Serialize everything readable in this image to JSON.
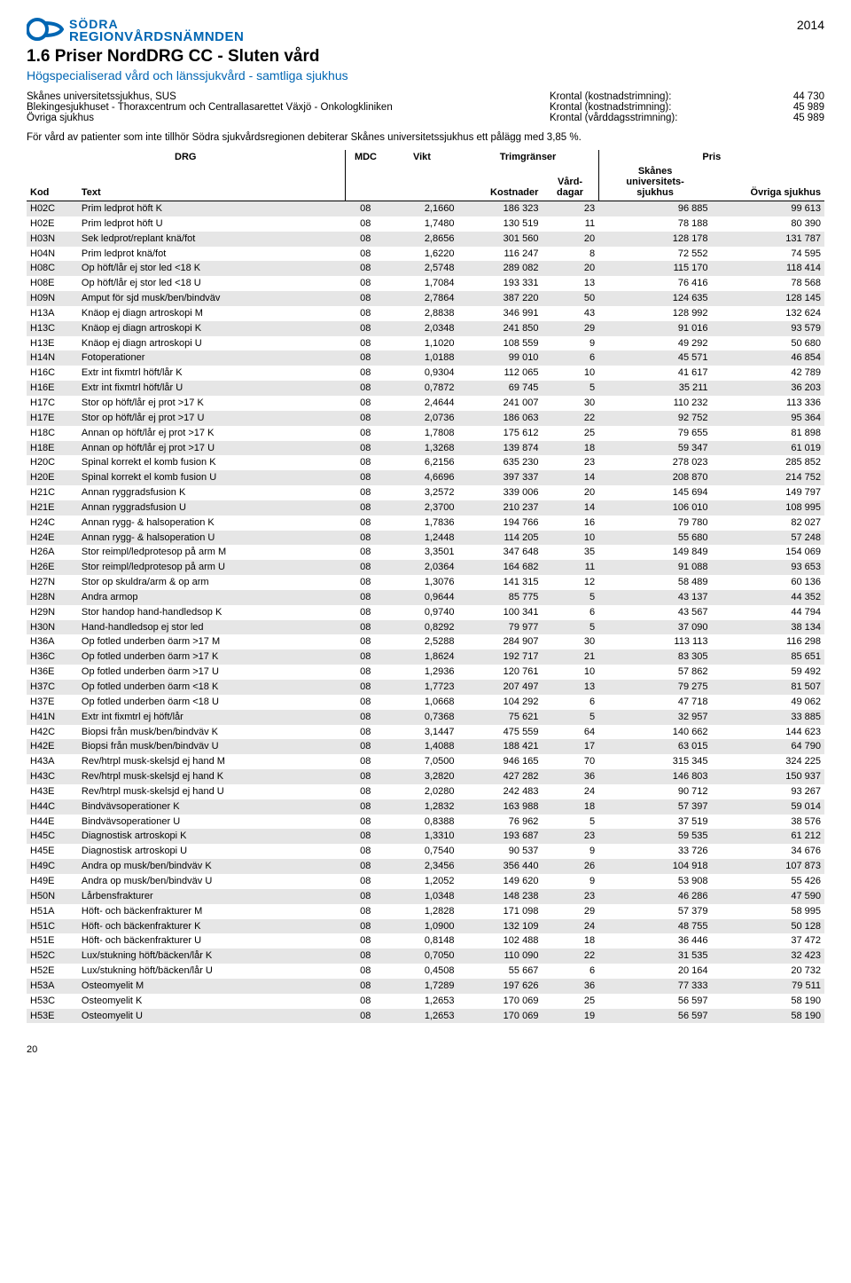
{
  "brand_top": "SÖDRA",
  "brand_bottom": "REGIONVÅRDSNÄMNDEN",
  "year": "2014",
  "title": "1.6  Priser NordDRG CC - Sluten vård",
  "subtitle": "Högspecialiserad vård och länssjukvård - samtliga sjukhus",
  "info_left": [
    "Skånes universitetssjukhus, SUS",
    "Blekingesjukhuset - Thoraxcentrum och Centrallasarettet Växjö  - Onkologkliniken",
    "Övriga sjukhus"
  ],
  "info_right": [
    {
      "label": "Krontal (kostnadstrimning):",
      "val": "44 730"
    },
    {
      "label": "Krontal (kostnadstrimning):",
      "val": "45 989"
    },
    {
      "label": "Krontal (vårddagsstrimning):",
      "val": "45 989"
    }
  ],
  "note": "För vård av patienter som inte tillhör Södra sjukvårdsregionen debiterar Skånes universitetssjukhus ett pålägg med 3,85 %.",
  "headers": {
    "drg": "DRG",
    "mdc": "MDC",
    "vikt": "Vikt",
    "trim": "Trimgränser",
    "pris": "Pris",
    "kod": "Kod",
    "text": "Text",
    "kost": "Kostnader",
    "dag": "Vård-\ndagar",
    "sus": "Skånes\nuniversitets-\nsjukhus",
    "ovr": "Övriga sjukhus"
  },
  "rows": [
    [
      "H02C",
      "Prim ledprot höft K",
      "08",
      "2,1660",
      "186 323",
      "23",
      "96 885",
      "99 613"
    ],
    [
      "H02E",
      "Prim ledprot höft U",
      "08",
      "1,7480",
      "130 519",
      "11",
      "78 188",
      "80 390"
    ],
    [
      "H03N",
      "Sek ledprot/replant knä/fot",
      "08",
      "2,8656",
      "301 560",
      "20",
      "128 178",
      "131 787"
    ],
    [
      "H04N",
      "Prim ledprot knä/fot",
      "08",
      "1,6220",
      "116 247",
      "8",
      "72 552",
      "74 595"
    ],
    [
      "H08C",
      "Op höft/lår ej stor led <18 K",
      "08",
      "2,5748",
      "289 082",
      "20",
      "115 170",
      "118 414"
    ],
    [
      "H08E",
      "Op höft/lår ej stor led <18 U",
      "08",
      "1,7084",
      "193 331",
      "13",
      "76 416",
      "78 568"
    ],
    [
      "H09N",
      "Amput för sjd musk/ben/bindväv",
      "08",
      "2,7864",
      "387 220",
      "50",
      "124 635",
      "128 145"
    ],
    [
      "H13A",
      "Knäop ej diagn artroskopi M",
      "08",
      "2,8838",
      "346 991",
      "43",
      "128 992",
      "132 624"
    ],
    [
      "H13C",
      "Knäop ej diagn artroskopi K",
      "08",
      "2,0348",
      "241 850",
      "29",
      "91 016",
      "93 579"
    ],
    [
      "H13E",
      "Knäop ej diagn artroskopi U",
      "08",
      "1,1020",
      "108 559",
      "9",
      "49 292",
      "50 680"
    ],
    [
      "H14N",
      "Fotoperationer",
      "08",
      "1,0188",
      "99 010",
      "6",
      "45 571",
      "46 854"
    ],
    [
      "H16C",
      "Extr int fixmtrl höft/lår K",
      "08",
      "0,9304",
      "112 065",
      "10",
      "41 617",
      "42 789"
    ],
    [
      "H16E",
      "Extr int fixmtrl höft/lår U",
      "08",
      "0,7872",
      "69 745",
      "5",
      "35 211",
      "36 203"
    ],
    [
      "H17C",
      "Stor op höft/lår ej prot >17 K",
      "08",
      "2,4644",
      "241 007",
      "30",
      "110 232",
      "113 336"
    ],
    [
      "H17E",
      "Stor op höft/lår ej prot >17 U",
      "08",
      "2,0736",
      "186 063",
      "22",
      "92 752",
      "95 364"
    ],
    [
      "H18C",
      "Annan op höft/lår ej prot >17 K",
      "08",
      "1,7808",
      "175 612",
      "25",
      "79 655",
      "81 898"
    ],
    [
      "H18E",
      "Annan op höft/lår ej prot >17 U",
      "08",
      "1,3268",
      "139 874",
      "18",
      "59 347",
      "61 019"
    ],
    [
      "H20C",
      "Spinal korrekt el komb fusion K",
      "08",
      "6,2156",
      "635 230",
      "23",
      "278 023",
      "285 852"
    ],
    [
      "H20E",
      "Spinal korrekt el komb fusion U",
      "08",
      "4,6696",
      "397 337",
      "14",
      "208 870",
      "214 752"
    ],
    [
      "H21C",
      "Annan ryggradsfusion K",
      "08",
      "3,2572",
      "339 006",
      "20",
      "145 694",
      "149 797"
    ],
    [
      "H21E",
      "Annan ryggradsfusion U",
      "08",
      "2,3700",
      "210 237",
      "14",
      "106 010",
      "108 995"
    ],
    [
      "H24C",
      "Annan rygg- & halsoperation K",
      "08",
      "1,7836",
      "194 766",
      "16",
      "79 780",
      "82 027"
    ],
    [
      "H24E",
      "Annan rygg- & halsoperation U",
      "08",
      "1,2448",
      "114 205",
      "10",
      "55 680",
      "57 248"
    ],
    [
      "H26A",
      "Stor reimpl/ledprotesop på arm M",
      "08",
      "3,3501",
      "347 648",
      "35",
      "149 849",
      "154 069"
    ],
    [
      "H26E",
      "Stor reimpl/ledprotesop på arm U",
      "08",
      "2,0364",
      "164 682",
      "11",
      "91 088",
      "93 653"
    ],
    [
      "H27N",
      "Stor op skuldra/arm & op arm",
      "08",
      "1,3076",
      "141 315",
      "12",
      "58 489",
      "60 136"
    ],
    [
      "H28N",
      "Andra armop",
      "08",
      "0,9644",
      "85 775",
      "5",
      "43 137",
      "44 352"
    ],
    [
      "H29N",
      "Stor handop hand-handledsop K",
      "08",
      "0,9740",
      "100 341",
      "6",
      "43 567",
      "44 794"
    ],
    [
      "H30N",
      "Hand-handledsop ej stor led",
      "08",
      "0,8292",
      "79 977",
      "5",
      "37 090",
      "38 134"
    ],
    [
      "H36A",
      "Op fotled underben öarm >17 M",
      "08",
      "2,5288",
      "284 907",
      "30",
      "113 113",
      "116 298"
    ],
    [
      "H36C",
      "Op fotled underben öarm >17 K",
      "08",
      "1,8624",
      "192 717",
      "21",
      "83 305",
      "85 651"
    ],
    [
      "H36E",
      "Op fotled underben öarm >17 U",
      "08",
      "1,2936",
      "120 761",
      "10",
      "57 862",
      "59 492"
    ],
    [
      "H37C",
      "Op fotled underben öarm <18 K",
      "08",
      "1,7723",
      "207 497",
      "13",
      "79 275",
      "81 507"
    ],
    [
      "H37E",
      "Op fotled underben öarm <18 U",
      "08",
      "1,0668",
      "104 292",
      "6",
      "47 718",
      "49 062"
    ],
    [
      "H41N",
      "Extr int fixmtrl ej höft/lår",
      "08",
      "0,7368",
      "75 621",
      "5",
      "32 957",
      "33 885"
    ],
    [
      "H42C",
      "Biopsi från musk/ben/bindväv K",
      "08",
      "3,1447",
      "475 559",
      "64",
      "140 662",
      "144 623"
    ],
    [
      "H42E",
      "Biopsi från musk/ben/bindväv U",
      "08",
      "1,4088",
      "188 421",
      "17",
      "63 015",
      "64 790"
    ],
    [
      "H43A",
      "Rev/htrpl musk-skelsjd ej hand M",
      "08",
      "7,0500",
      "946 165",
      "70",
      "315 345",
      "324 225"
    ],
    [
      "H43C",
      "Rev/htrpl musk-skelsjd ej hand K",
      "08",
      "3,2820",
      "427 282",
      "36",
      "146 803",
      "150 937"
    ],
    [
      "H43E",
      "Rev/htrpl musk-skelsjd ej hand U",
      "08",
      "2,0280",
      "242 483",
      "24",
      "90 712",
      "93 267"
    ],
    [
      "H44C",
      "Bindvävsoperationer K",
      "08",
      "1,2832",
      "163 988",
      "18",
      "57 397",
      "59 014"
    ],
    [
      "H44E",
      "Bindvävsoperationer U",
      "08",
      "0,8388",
      "76 962",
      "5",
      "37 519",
      "38 576"
    ],
    [
      "H45C",
      "Diagnostisk artroskopi K",
      "08",
      "1,3310",
      "193 687",
      "23",
      "59 535",
      "61 212"
    ],
    [
      "H45E",
      "Diagnostisk artroskopi U",
      "08",
      "0,7540",
      "90 537",
      "9",
      "33 726",
      "34 676"
    ],
    [
      "H49C",
      "Andra op musk/ben/bindväv K",
      "08",
      "2,3456",
      "356 440",
      "26",
      "104 918",
      "107 873"
    ],
    [
      "H49E",
      "Andra op musk/ben/bindväv U",
      "08",
      "1,2052",
      "149 620",
      "9",
      "53 908",
      "55 426"
    ],
    [
      "H50N",
      "Lårbensfrakturer",
      "08",
      "1,0348",
      "148 238",
      "23",
      "46 286",
      "47 590"
    ],
    [
      "H51A",
      "Höft- och bäckenfrakturer M",
      "08",
      "1,2828",
      "171 098",
      "29",
      "57 379",
      "58 995"
    ],
    [
      "H51C",
      "Höft- och bäckenfrakturer K",
      "08",
      "1,0900",
      "132 109",
      "24",
      "48 755",
      "50 128"
    ],
    [
      "H51E",
      "Höft- och bäckenfrakturer U",
      "08",
      "0,8148",
      "102 488",
      "18",
      "36 446",
      "37 472"
    ],
    [
      "H52C",
      "Lux/stukning höft/bäcken/lår K",
      "08",
      "0,7050",
      "110 090",
      "22",
      "31 535",
      "32 423"
    ],
    [
      "H52E",
      "Lux/stukning höft/bäcken/lår U",
      "08",
      "0,4508",
      "55 667",
      "6",
      "20 164",
      "20 732"
    ],
    [
      "H53A",
      "Osteomyelit M",
      "08",
      "1,7289",
      "197 626",
      "36",
      "77 333",
      "79 511"
    ],
    [
      "H53C",
      "Osteomyelit K",
      "08",
      "1,2653",
      "170 069",
      "25",
      "56 597",
      "58 190"
    ],
    [
      "H53E",
      "Osteomyelit U",
      "08",
      "1,2653",
      "170 069",
      "19",
      "56 597",
      "58 190"
    ]
  ],
  "page_num": "20"
}
